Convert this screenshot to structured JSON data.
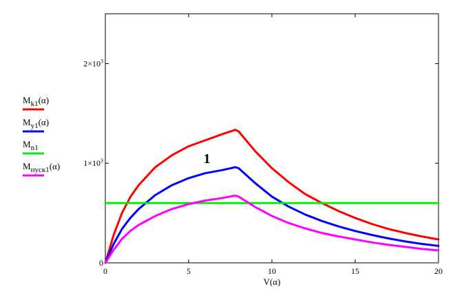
{
  "chart_data": {
    "type": "line",
    "xlabel": "V(α)",
    "ylabel": "",
    "xlim": [
      0,
      20
    ],
    "ylim": [
      0,
      2500
    ],
    "x_ticks": [
      {
        "value": 0,
        "label": "0"
      },
      {
        "value": 5,
        "label": "5"
      },
      {
        "value": 10,
        "label": "10"
      },
      {
        "value": 15,
        "label": "15"
      },
      {
        "value": 20,
        "label": "20"
      }
    ],
    "y_ticks": [
      {
        "value": 0,
        "label": "0"
      },
      {
        "value": 1000,
        "label": "1×10",
        "exp": "3"
      },
      {
        "value": 2000,
        "label": "2×10",
        "exp": "3"
      }
    ],
    "grid": false,
    "legend_position": "left",
    "series": [
      {
        "name": "M",
        "sub": "k1",
        "arg": "(α)",
        "color": "#ff0000",
        "x": [
          0,
          0.5,
          1,
          1.5,
          2,
          3,
          4,
          5,
          6,
          7,
          7.8,
          8,
          9,
          10,
          11,
          12,
          13,
          14,
          15,
          16,
          17,
          18,
          19,
          20
        ],
        "y": [
          0,
          280,
          500,
          660,
          780,
          960,
          1080,
          1170,
          1230,
          1290,
          1335,
          1320,
          1120,
          950,
          810,
          690,
          600,
          520,
          450,
          390,
          340,
          300,
          265,
          235
        ]
      },
      {
        "name": "M",
        "sub": "y1",
        "arg": "(α)",
        "color": "#0000ff",
        "x": [
          0,
          0.5,
          1,
          1.5,
          2,
          3,
          4,
          5,
          6,
          7,
          7.8,
          8,
          9,
          10,
          11,
          12,
          13,
          14,
          15,
          16,
          17,
          18,
          19,
          20
        ],
        "y": [
          0,
          190,
          340,
          450,
          540,
          680,
          780,
          850,
          900,
          930,
          960,
          950,
          800,
          665,
          565,
          485,
          420,
          365,
          320,
          280,
          245,
          215,
          190,
          170
        ]
      },
      {
        "name": "M",
        "sub": "n1",
        "arg": "",
        "color": "#00ee00",
        "x": [
          0,
          20
        ],
        "y": [
          600,
          600
        ]
      },
      {
        "name": "M",
        "sub": "пуск1",
        "arg": "(α)",
        "color": "#ff00ff",
        "x": [
          0,
          0.5,
          1,
          1.5,
          2,
          3,
          4,
          5,
          6,
          7,
          7.8,
          8,
          9,
          10,
          11,
          12,
          13,
          14,
          15,
          16,
          17,
          18,
          19,
          20
        ],
        "y": [
          0,
          130,
          240,
          320,
          380,
          470,
          540,
          590,
          625,
          650,
          675,
          665,
          560,
          470,
          400,
          345,
          300,
          265,
          235,
          205,
          180,
          160,
          140,
          125
        ]
      }
    ],
    "annotations": [
      {
        "text": "1",
        "x": 6.1,
        "y": 1000
      }
    ]
  }
}
